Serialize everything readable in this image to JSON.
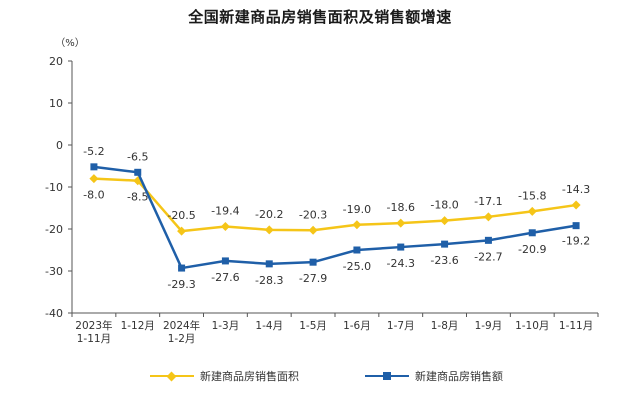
{
  "chart_data": {
    "type": "line",
    "title": "全国新建商品房销售面积及销售额增速",
    "ylabel": "（%）",
    "ylim": [
      -40,
      20
    ],
    "yticks": [
      20,
      10,
      0,
      -10,
      -20,
      -30,
      -40
    ],
    "categories": [
      [
        "2023年",
        "1-11月"
      ],
      [
        "1-12月"
      ],
      [
        "2024年",
        "1-2月"
      ],
      [
        "1-3月"
      ],
      [
        "1-4月"
      ],
      [
        "1-5月"
      ],
      [
        "1-6月"
      ],
      [
        "1-7月"
      ],
      [
        "1-8月"
      ],
      [
        "1-9月"
      ],
      [
        "1-10月"
      ],
      [
        "1-11月"
      ]
    ],
    "series": [
      {
        "name": "新建商品房销售面积",
        "color": "#f5c518",
        "marker": "diamond",
        "values": [
          -8.0,
          -8.5,
          -20.5,
          -19.4,
          -20.2,
          -20.3,
          -19.0,
          -18.6,
          -18.0,
          -17.1,
          -15.8,
          -14.3
        ],
        "labels": [
          "-8.0",
          "-8.5",
          "-20.5",
          "-19.4",
          "-20.2",
          "-20.3",
          "-19.0",
          "-18.6",
          "-18.0",
          "-17.1",
          "-15.8",
          "-14.3"
        ]
      },
      {
        "name": "新建商品房销售额",
        "color": "#1f5fa8",
        "marker": "square",
        "values": [
          -5.2,
          -6.5,
          -29.3,
          -27.6,
          -28.3,
          -27.9,
          -25.0,
          -24.3,
          -23.6,
          -22.7,
          -20.9,
          -19.2
        ],
        "labels": [
          "-5.2",
          "-6.5",
          "-29.3",
          "-27.6",
          "-28.3",
          "-27.9",
          "-25.0",
          "-24.3",
          "-23.6",
          "-22.7",
          "-20.9",
          "-19.2"
        ]
      }
    ],
    "legend_position": "bottom",
    "grid": false
  }
}
